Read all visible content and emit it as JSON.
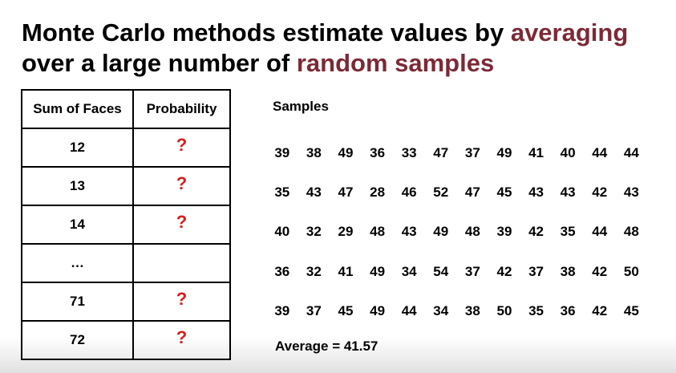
{
  "title": {
    "line1_plain": "Monte Carlo methods estimate values by ",
    "line1_highlight": "averaging",
    "line2_plain": "over a large number of ",
    "line2_highlight": "random samples"
  },
  "colors": {
    "highlight": "#7b2a36",
    "question_mark": "#d31f1f"
  },
  "table": {
    "headers": [
      "Sum of Faces",
      "Probability"
    ],
    "rows": [
      {
        "sum": "12",
        "prob": "?"
      },
      {
        "sum": "13",
        "prob": "?"
      },
      {
        "sum": "14",
        "prob": "?"
      },
      {
        "sum": "…",
        "prob": ""
      },
      {
        "sum": "71",
        "prob": "?"
      },
      {
        "sum": "72",
        "prob": "?"
      }
    ]
  },
  "samples": {
    "label": "Samples",
    "rows": [
      [
        "39",
        "38",
        "49",
        "36",
        "33",
        "47",
        "37",
        "49",
        "41",
        "40",
        "44",
        "44"
      ],
      [
        "35",
        "43",
        "47",
        "28",
        "46",
        "52",
        "47",
        "45",
        "43",
        "43",
        "42",
        "43"
      ],
      [
        "40",
        "32",
        "29",
        "48",
        "43",
        "49",
        "48",
        "39",
        "42",
        "35",
        "44",
        "48"
      ],
      [
        "36",
        "32",
        "41",
        "49",
        "34",
        "54",
        "37",
        "42",
        "37",
        "38",
        "42",
        "50"
      ],
      [
        "39",
        "37",
        "45",
        "49",
        "44",
        "34",
        "38",
        "50",
        "35",
        "36",
        "42",
        "45"
      ]
    ],
    "average": "Average = 41.57"
  }
}
